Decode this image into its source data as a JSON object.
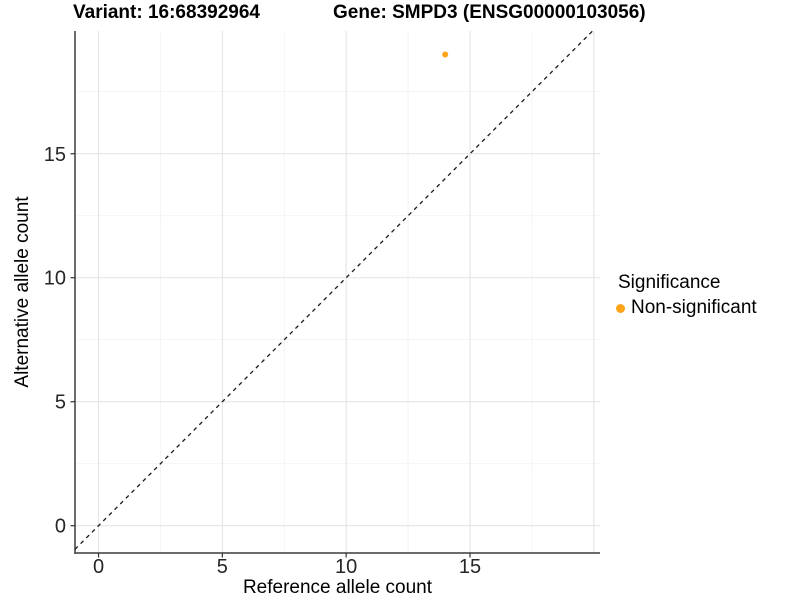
{
  "chart_data": {
    "type": "scatter",
    "title_left": "Variant: 16:68392964",
    "title_right": "Gene: SMPD3 (ENSG00000103056)",
    "xlabel": "Reference allele count",
    "ylabel": "Alternative allele count",
    "xlim": [
      -0.95,
      20.25
    ],
    "ylim": [
      -1.1,
      19.95
    ],
    "x_ticks": [
      0,
      5,
      10,
      15
    ],
    "y_ticks": [
      0,
      5,
      10,
      15
    ],
    "x_grid_major": [
      0,
      5,
      10,
      15,
      20
    ],
    "x_grid_minor": [
      2.5,
      7.5,
      12.5,
      17.5
    ],
    "y_grid_major": [
      0,
      5,
      10,
      15
    ],
    "y_grid_minor": [
      2.5,
      7.5,
      12.5,
      17.5
    ],
    "grid": true,
    "series": [
      {
        "name": "Non-significant",
        "color": "#FFA319",
        "points": [
          {
            "x": 14,
            "y": 19
          }
        ]
      }
    ],
    "reference_line": {
      "type": "identity",
      "equation": "y = x",
      "style": "dashed",
      "color": "#1a1a1a"
    },
    "legend": {
      "title": "Significance",
      "position": "right",
      "items": [
        {
          "label": "Non-significant",
          "color": "#FFA319"
        }
      ]
    },
    "colors": {
      "background": "#FFFFFF",
      "grid_major": "#E4E4E4",
      "grid_minor": "#F1F1F1",
      "axis_line": "#3C3C3C",
      "tick_mark": "#333333",
      "tick_label": "#262626"
    }
  }
}
